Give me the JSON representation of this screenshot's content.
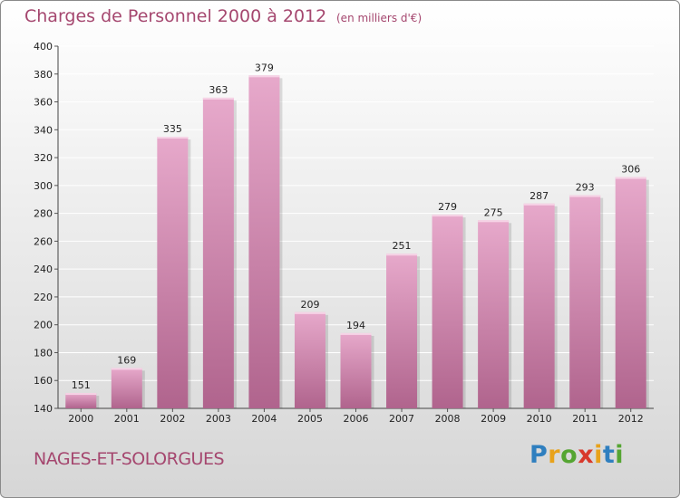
{
  "title": "Charges de Personnel 2000 à 2012",
  "unit": "(en milliers d'€)",
  "commune": "NAGES-ET-SOLORGUES",
  "logo": {
    "letters": [
      {
        "ch": "P",
        "color": "#2f7fbf"
      },
      {
        "ch": "r",
        "color": "#e8a21a"
      },
      {
        "ch": "o",
        "color": "#55a532"
      },
      {
        "ch": "x",
        "color": "#d8392b"
      },
      {
        "ch": "i",
        "color": "#e8a21a"
      },
      {
        "ch": "t",
        "color": "#2f7fbf"
      },
      {
        "ch": "i",
        "color": "#55a532"
      }
    ]
  },
  "colors": {
    "title": "#a5476f",
    "bar_top": "#e7a9cb",
    "bar_bottom": "#b0648d",
    "grid": "#ffffff"
  },
  "chart_data": {
    "type": "bar",
    "categories": [
      "2000",
      "2001",
      "2002",
      "2003",
      "2004",
      "2005",
      "2006",
      "2007",
      "2008",
      "2009",
      "2010",
      "2011",
      "2012"
    ],
    "values": [
      151,
      169,
      335,
      363,
      379,
      209,
      194,
      251,
      279,
      275,
      287,
      293,
      306
    ],
    "ylim": [
      140,
      400
    ],
    "yticks": [
      140,
      160,
      180,
      200,
      220,
      240,
      260,
      280,
      300,
      320,
      340,
      360,
      380,
      400
    ],
    "grid": true
  }
}
